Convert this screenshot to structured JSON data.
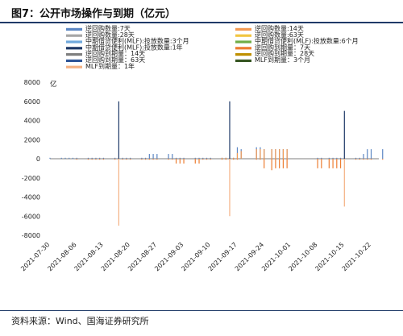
{
  "figure": {
    "title": "图7：公开市场操作与到期（亿元）",
    "source": "资料来源：Wind、国海证券研究所"
  },
  "chart_data": {
    "type": "bar",
    "y_unit": "亿",
    "ylim": [
      -8000,
      8000
    ],
    "yticks": [
      -8000,
      -6000,
      -4000,
      -2000,
      0,
      2000,
      4000,
      6000,
      8000
    ],
    "x_start": "2021-07-30",
    "xticks": [
      "2021-07-30",
      "2021-08-06",
      "2021-08-13",
      "2021-08-20",
      "2021-08-27",
      "2021-09-03",
      "2021-09-10",
      "2021-09-17",
      "2021-09-24",
      "2021-10-01",
      "2021-10-08",
      "2021-10-15",
      "2021-10-22"
    ],
    "legend_position": "top",
    "series": [
      {
        "name": "逆回购数量:7天",
        "color": "#5b86c3",
        "points": [
          [
            "2021-07-30",
            100
          ],
          [
            "2021-08-02",
            100
          ],
          [
            "2021-08-03",
            100
          ],
          [
            "2021-08-04",
            100
          ],
          [
            "2021-08-05",
            100
          ],
          [
            "2021-08-06",
            100
          ],
          [
            "2021-08-09",
            100
          ],
          [
            "2021-08-10",
            100
          ],
          [
            "2021-08-11",
            100
          ],
          [
            "2021-08-12",
            100
          ],
          [
            "2021-08-13",
            100
          ],
          [
            "2021-08-16",
            100
          ],
          [
            "2021-08-17",
            100
          ],
          [
            "2021-08-18",
            100
          ],
          [
            "2021-08-19",
            100
          ],
          [
            "2021-08-20",
            100
          ],
          [
            "2021-08-23",
            100
          ],
          [
            "2021-08-24",
            100
          ],
          [
            "2021-08-25",
            500
          ],
          [
            "2021-08-26",
            500
          ],
          [
            "2021-08-27",
            500
          ],
          [
            "2021-08-30",
            500
          ],
          [
            "2021-08-31",
            500
          ],
          [
            "2021-09-01",
            100
          ],
          [
            "2021-09-02",
            100
          ],
          [
            "2021-09-03",
            100
          ],
          [
            "2021-09-06",
            100
          ],
          [
            "2021-09-07",
            100
          ],
          [
            "2021-09-08",
            100
          ],
          [
            "2021-09-09",
            100
          ],
          [
            "2021-09-10",
            100
          ],
          [
            "2021-09-13",
            100
          ],
          [
            "2021-09-14",
            100
          ],
          [
            "2021-09-15",
            100
          ],
          [
            "2021-09-16",
            100
          ],
          [
            "2021-09-17",
            1200
          ],
          [
            "2021-09-18",
            1000
          ],
          [
            "2021-09-22",
            1200
          ],
          [
            "2021-09-23",
            1200
          ],
          [
            "2021-09-24",
            1000
          ],
          [
            "2021-09-26",
            1000
          ],
          [
            "2021-09-27",
            1000
          ],
          [
            "2021-09-28",
            1000
          ],
          [
            "2021-09-29",
            1000
          ],
          [
            "2021-09-30",
            1000
          ],
          [
            "2021-10-08",
            100
          ],
          [
            "2021-10-09",
            100
          ],
          [
            "2021-10-11",
            100
          ],
          [
            "2021-10-12",
            100
          ],
          [
            "2021-10-13",
            100
          ],
          [
            "2021-10-14",
            100
          ],
          [
            "2021-10-15",
            100
          ],
          [
            "2021-10-18",
            100
          ],
          [
            "2021-10-19",
            100
          ],
          [
            "2021-10-20",
            500
          ],
          [
            "2021-10-21",
            1000
          ],
          [
            "2021-10-22",
            1000
          ],
          [
            "2021-10-25",
            1000
          ]
        ]
      },
      {
        "name": "逆回购数量:14天",
        "color": "#f39a52",
        "points": [
          [
            "2021-09-13",
            100
          ],
          [
            "2021-09-14",
            100
          ],
          [
            "2021-09-15",
            100
          ],
          [
            "2021-09-16",
            100
          ],
          [
            "2021-09-17",
            600
          ],
          [
            "2021-09-18",
            800
          ],
          [
            "2021-09-22",
            1000
          ],
          [
            "2021-09-23",
            1000
          ],
          [
            "2021-09-24",
            1000
          ],
          [
            "2021-09-26",
            1000
          ],
          [
            "2021-09-27",
            1000
          ],
          [
            "2021-09-28",
            1000
          ],
          [
            "2021-09-29",
            1000
          ],
          [
            "2021-09-30",
            1000
          ]
        ]
      },
      {
        "name": "逆回购数量:28天",
        "color": "#a6a6a6",
        "points": []
      },
      {
        "name": "逆回购数量:63天",
        "color": "#f2c642",
        "points": []
      },
      {
        "name": "中期借贷便利(MLF):投放数量:3个月",
        "color": "#6fa8dc",
        "points": []
      },
      {
        "name": "中期借贷便利(MLF):投放数量:6个月",
        "color": "#70ad47",
        "points": []
      },
      {
        "name": "中期借贷便利(MLF):投放数量:1年",
        "color": "#1f3a68",
        "points": [
          [
            "2021-08-17",
            6000
          ],
          [
            "2021-09-15",
            6000
          ],
          [
            "2021-10-15",
            5000
          ]
        ]
      },
      {
        "name": "逆回购到期量：7天",
        "color": "#ed7d31",
        "points": [
          [
            "2021-08-06",
            -100
          ],
          [
            "2021-08-09",
            -100
          ],
          [
            "2021-08-10",
            -100
          ],
          [
            "2021-08-11",
            -100
          ],
          [
            "2021-08-12",
            -100
          ],
          [
            "2021-08-13",
            -100
          ],
          [
            "2021-08-16",
            -100
          ],
          [
            "2021-08-17",
            -100
          ],
          [
            "2021-08-18",
            -100
          ],
          [
            "2021-08-19",
            -100
          ],
          [
            "2021-08-20",
            -100
          ],
          [
            "2021-08-23",
            -100
          ],
          [
            "2021-08-24",
            -100
          ],
          [
            "2021-08-25",
            -100
          ],
          [
            "2021-08-26",
            -100
          ],
          [
            "2021-08-27",
            -100
          ],
          [
            "2021-08-30",
            -100
          ],
          [
            "2021-08-31",
            -100
          ],
          [
            "2021-09-01",
            -500
          ],
          [
            "2021-09-02",
            -500
          ],
          [
            "2021-09-03",
            -500
          ],
          [
            "2021-09-06",
            -500
          ],
          [
            "2021-09-07",
            -500
          ],
          [
            "2021-09-08",
            -100
          ],
          [
            "2021-09-09",
            -100
          ],
          [
            "2021-09-10",
            -100
          ],
          [
            "2021-09-13",
            -100
          ],
          [
            "2021-09-14",
            -100
          ],
          [
            "2021-09-15",
            -100
          ],
          [
            "2021-09-16",
            -100
          ],
          [
            "2021-09-17",
            -100
          ],
          [
            "2021-09-22",
            -100
          ],
          [
            "2021-09-23",
            -100
          ],
          [
            "2021-09-24",
            -1000
          ],
          [
            "2021-09-26",
            -1200
          ],
          [
            "2021-09-27",
            -1000
          ],
          [
            "2021-09-28",
            -1000
          ],
          [
            "2021-09-29",
            -1000
          ],
          [
            "2021-09-30",
            -1000
          ],
          [
            "2021-10-08",
            -1000
          ],
          [
            "2021-10-09",
            -1000
          ],
          [
            "2021-10-11",
            -1000
          ],
          [
            "2021-10-12",
            -1000
          ],
          [
            "2021-10-13",
            -1000
          ],
          [
            "2021-10-14",
            -1000
          ],
          [
            "2021-10-15",
            -100
          ],
          [
            "2021-10-18",
            -100
          ],
          [
            "2021-10-19",
            -100
          ],
          [
            "2021-10-20",
            -100
          ],
          [
            "2021-10-21",
            -100
          ],
          [
            "2021-10-22",
            -100
          ],
          [
            "2021-10-25",
            -100
          ]
        ]
      },
      {
        "name": "逆回购到期量：14天",
        "color": "#7f7f7f",
        "points": []
      },
      {
        "name": "逆回购到期量：28天",
        "color": "#bf9000",
        "points": []
      },
      {
        "name": "逆回购到期量：63天",
        "color": "#2e5597",
        "points": []
      },
      {
        "name": "MLF到期量：3个月",
        "color": "#375623",
        "points": []
      },
      {
        "name": "MLF到期量：1年",
        "color": "#f4b183",
        "points": [
          [
            "2021-08-17",
            -7000
          ],
          [
            "2021-09-15",
            -6000
          ],
          [
            "2021-10-15",
            -5000
          ]
        ]
      }
    ]
  }
}
